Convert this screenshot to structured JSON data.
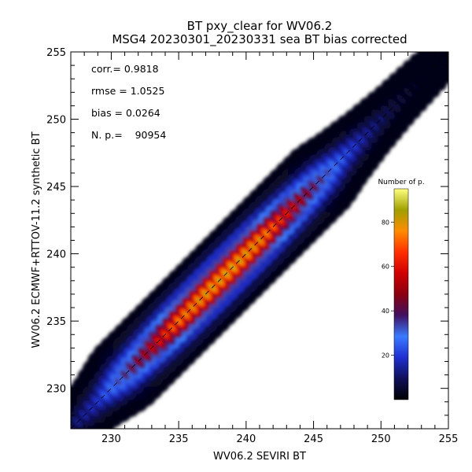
{
  "chart_data": {
    "type": "heatmap",
    "title": "BT pxy_clear for WV06.2",
    "subtitle": "MSG4 20230301_20230331 sea BT bias corrected",
    "xlabel": "WV06.2 SEVIRI BT",
    "ylabel": "WV06.2 ECMWF+RTTOV-11.2 synthetic BT",
    "xlim": [
      227,
      255
    ],
    "ylim": [
      227,
      255
    ],
    "x_ticks": [
      230,
      235,
      240,
      245,
      250,
      255
    ],
    "y_ticks": [
      230,
      235,
      240,
      245,
      250,
      255
    ],
    "grid": false,
    "identity_line": true,
    "stats": [
      {
        "label": "corr.= 0.9818"
      },
      {
        "label": "rmse = 1.0525"
      },
      {
        "label": "bias = 0.0264"
      },
      {
        "label": "N. p.=    90954"
      }
    ],
    "density_ridge": [
      {
        "x": 227,
        "y": 227,
        "peak": 12
      },
      {
        "x": 229,
        "y": 229,
        "peak": 22
      },
      {
        "x": 231,
        "y": 231,
        "peak": 42
      },
      {
        "x": 233,
        "y": 233,
        "peak": 60
      },
      {
        "x": 235,
        "y": 235,
        "peak": 80
      },
      {
        "x": 237,
        "y": 237,
        "peak": 88
      },
      {
        "x": 239,
        "y": 239,
        "peak": 90
      },
      {
        "x": 241,
        "y": 241,
        "peak": 85
      },
      {
        "x": 243,
        "y": 243,
        "peak": 66
      },
      {
        "x": 245,
        "y": 245,
        "peak": 46
      },
      {
        "x": 247,
        "y": 247,
        "peak": 28
      },
      {
        "x": 249,
        "y": 249,
        "peak": 16
      },
      {
        "x": 251,
        "y": 251,
        "peak": 8
      },
      {
        "x": 253,
        "y": 253,
        "peak": 4
      },
      {
        "x": 255,
        "y": 255,
        "peak": 1
      }
    ],
    "colorbar": {
      "title": "Number of p.",
      "range": [
        0,
        95
      ],
      "ticks": [
        20,
        40,
        60,
        80
      ],
      "colors": [
        "#000000",
        "#10105a",
        "#1f2fd0",
        "#3a7aff",
        "#401060",
        "#8a0010",
        "#d00000",
        "#ff3000",
        "#ff8c00",
        "#a0a000",
        "#ffff80"
      ]
    }
  }
}
